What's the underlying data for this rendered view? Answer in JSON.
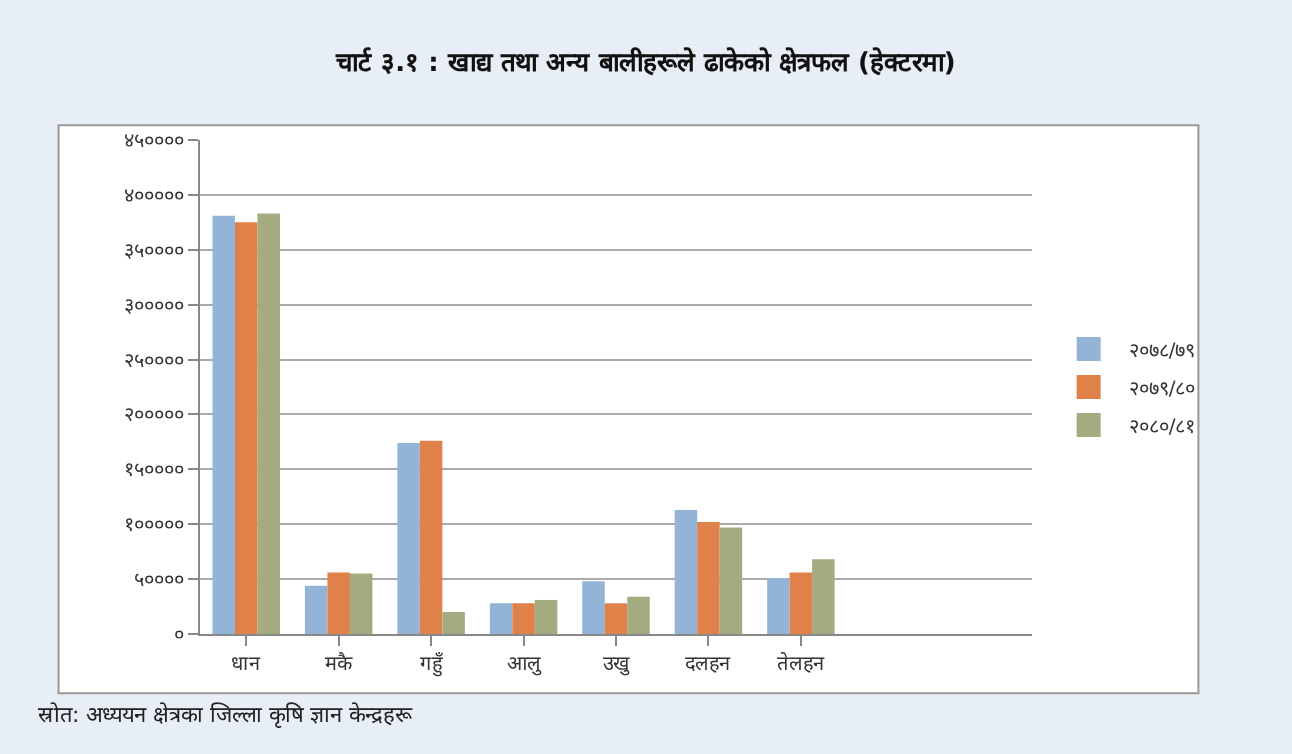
{
  "chart_data": {
    "type": "bar",
    "title": "चार्ट ३.१ : खाद्य तथा अन्य बालीहरूले ढाकेको क्षेत्रफल (हेक्टरमा)",
    "categories": [
      "धान",
      "मकै",
      "गहुँ",
      "आलु",
      "उखु",
      "दलहन",
      "तेलहन",
      null,
      null
    ],
    "series": [
      {
        "name": "२०७८/७९",
        "color": "#93b4d6",
        "values": [
          381000,
          44000,
          174000,
          28000,
          48000,
          113000,
          51000,
          null,
          null
        ]
      },
      {
        "name": "२०७९/८०",
        "color": "#e0814a",
        "values": [
          375000,
          56000,
          176000,
          28000,
          28000,
          102000,
          56000,
          null,
          null
        ]
      },
      {
        "name": "२०८०/८१",
        "color": "#a5ab80",
        "values": [
          383000,
          55000,
          20000,
          31000,
          34000,
          97000,
          68000,
          null,
          null
        ]
      }
    ],
    "ylim": [
      0,
      450000
    ],
    "yticks": [
      {
        "value": 0,
        "label": "०"
      },
      {
        "value": 50000,
        "label": "५००००"
      },
      {
        "value": 100000,
        "label": "१०००००"
      },
      {
        "value": 150000,
        "label": "१५००००"
      },
      {
        "value": 200000,
        "label": "२०००००"
      },
      {
        "value": 250000,
        "label": "२५००००"
      },
      {
        "value": 300000,
        "label": "३०००००"
      },
      {
        "value": 350000,
        "label": "३५००००"
      },
      {
        "value": 400000,
        "label": "४०००००"
      },
      {
        "value": 450000,
        "label": "४५००००"
      }
    ],
    "grid": "y",
    "legend": "right",
    "annotations": [
      "स्रोत: अध्ययन क्षेत्रका जिल्ला कृषि ज्ञान केन्द्रहरू"
    ]
  }
}
